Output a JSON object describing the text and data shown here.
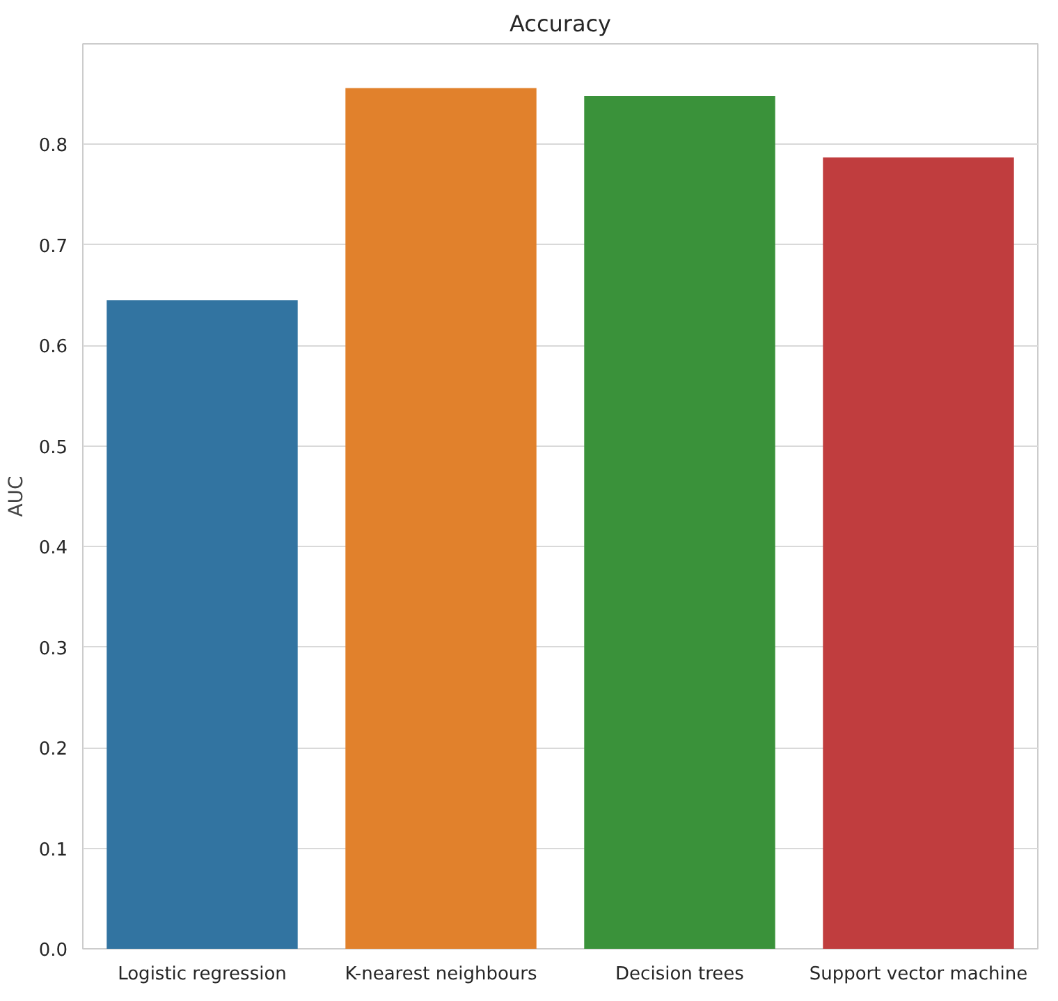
{
  "chart_data": {
    "type": "bar",
    "title": "Accuracy",
    "ylabel": "AUC",
    "categories": [
      "Logistic regression",
      "K-nearest neighbours",
      "Decision trees",
      "Support vector machine"
    ],
    "values": [
      0.645,
      0.856,
      0.848,
      0.787
    ],
    "colors": [
      "#3274a1",
      "#e1812c",
      "#3a923a",
      "#c03d3e"
    ],
    "ylim": [
      0,
      0.9
    ],
    "yticks": [
      {
        "value": 0,
        "label": "0.0"
      },
      0.1,
      0.2,
      0.3,
      0.4,
      0.5,
      0.6,
      0.7,
      0.8
    ],
    "grid": "y"
  }
}
